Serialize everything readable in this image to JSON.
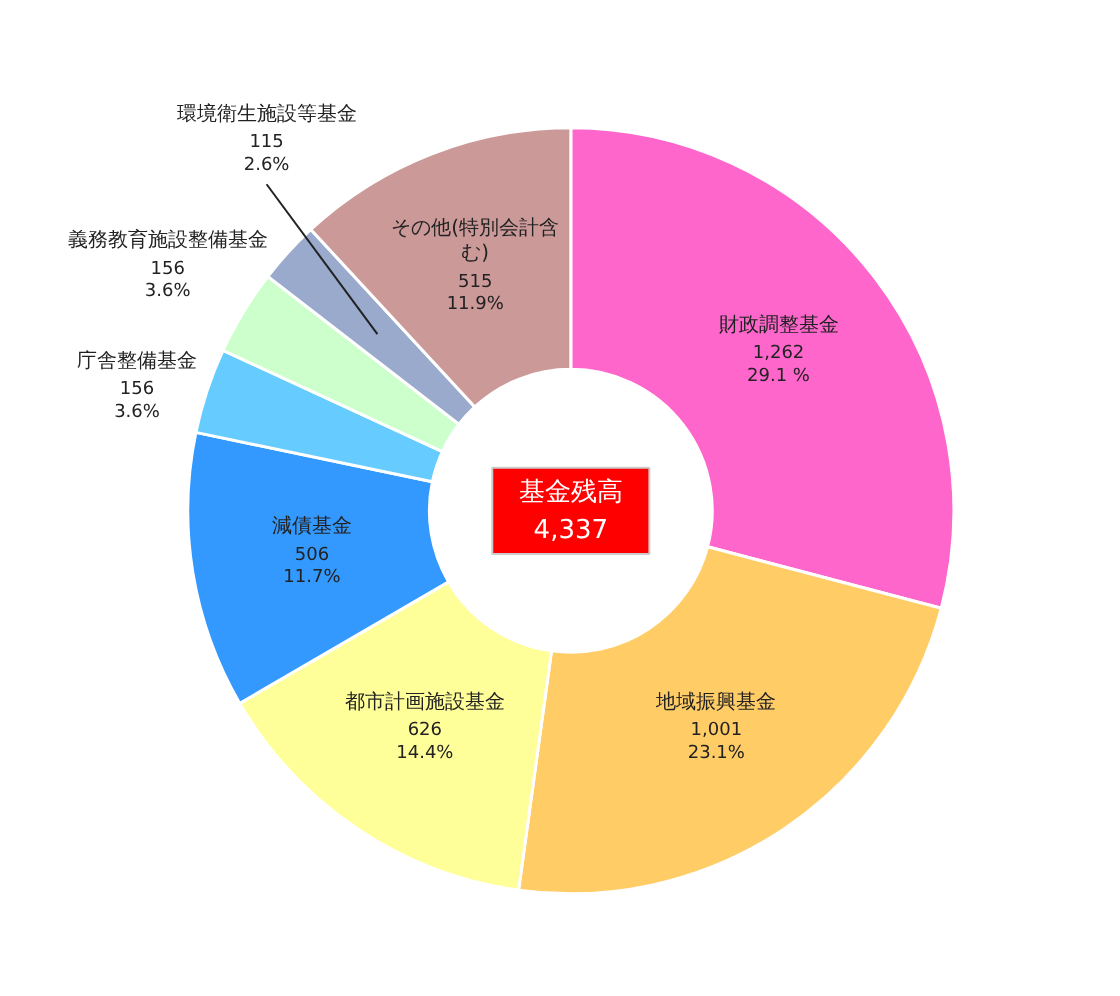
{
  "chart_data": {
    "type": "donut",
    "categories": [
      "財政調整基金",
      "地域振興基金",
      "都市計画施設基金",
      "減債基金",
      "庁舎整備基金",
      "義務教育施設整備基金",
      "環境衛生施設等基金",
      "その他(特別会計含む)"
    ],
    "values": [
      1262,
      1001,
      626,
      506,
      156,
      156,
      115,
      515
    ],
    "value_labels": [
      "1,262\n29.1 %",
      "1,001\n23.1%",
      "626\n14.4%",
      "506\n11.7%",
      "156\n3.6%",
      "156\n3.6%",
      "115\n2.6%",
      "515\n11.9%"
    ],
    "colors": [
      "#ff66cc",
      "#ffcc66",
      "#ffff99",
      "#3399ff",
      "#66ccff",
      "#ccffcc",
      "#99aacc",
      "#cc9999"
    ],
    "annotations": [
      "基金残高\n4,337"
    ]
  }
}
